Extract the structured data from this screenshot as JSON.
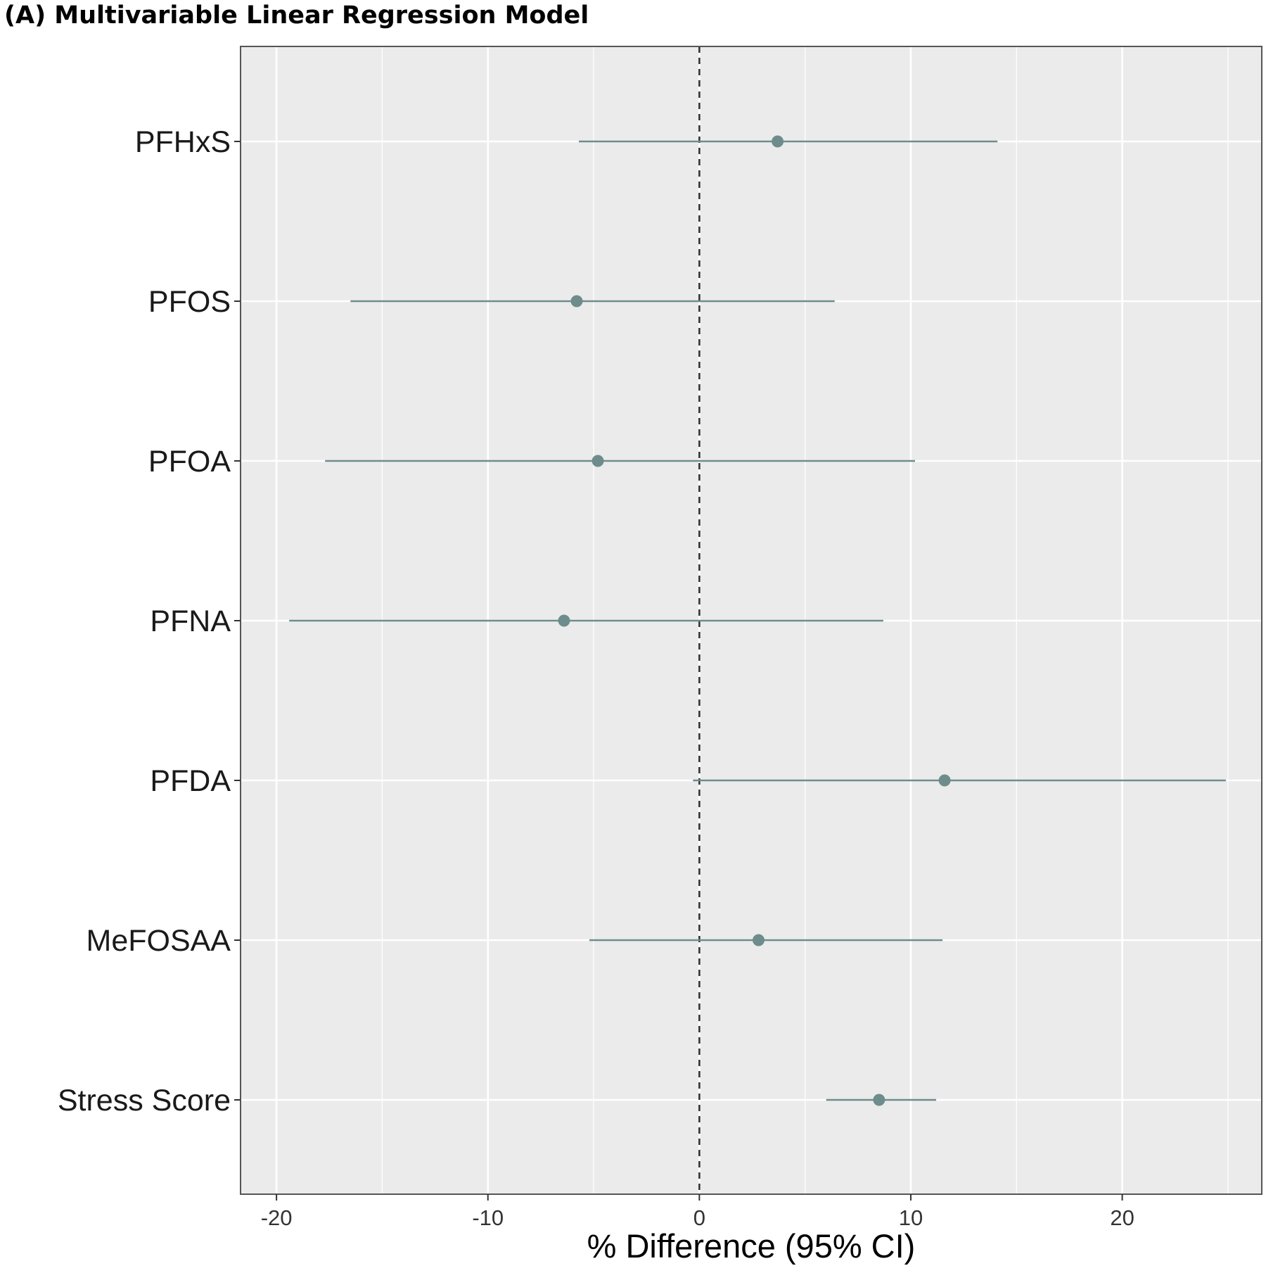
{
  "chart_data": {
    "type": "forest",
    "title": "(A) Multivariable Linear Regression Model",
    "xlabel": "% Difference (95% CI)",
    "ylabel": "",
    "xlim": [
      -21.7,
      26.6
    ],
    "xticks": [
      -20,
      -10,
      0,
      10,
      20
    ],
    "xtick_labels": [
      "-20",
      "-10",
      "0",
      "10",
      "20"
    ],
    "reference_line": 0,
    "grid": true,
    "categories": [
      "PFHxS",
      "PFOS",
      "PFOA",
      "PFNA",
      "PFDA",
      "MeFOSAA",
      "Stress Score"
    ],
    "estimates": [
      3.7,
      -5.8,
      -4.8,
      -6.4,
      11.6,
      2.8,
      8.5
    ],
    "ci_lower": [
      -5.7,
      -16.5,
      -17.7,
      -19.4,
      -0.3,
      -5.2,
      6.0
    ],
    "ci_upper": [
      14.1,
      6.4,
      10.2,
      8.7,
      24.9,
      11.5,
      11.2
    ]
  },
  "colors": {
    "panel_background": "#ebebeb",
    "grid": "#ffffff",
    "marker": "#6e8c8c",
    "reference_line": "#333333",
    "panel_border": "#555555"
  }
}
